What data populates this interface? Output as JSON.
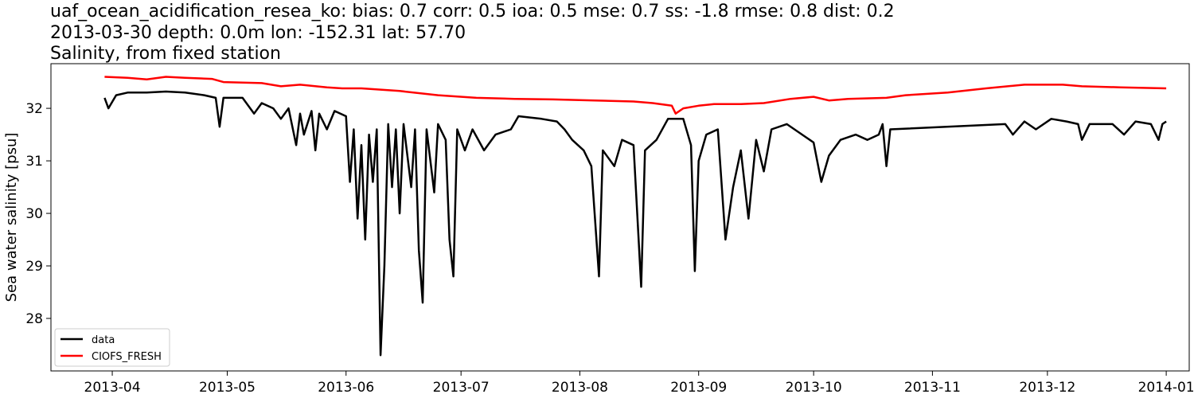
{
  "title_lines": [
    "uaf_ocean_acidification_resea_ko: bias: 0.7  corr: 0.5  ioa: 0.5  mse: 0.7  ss: -1.8  rmse: 0.8  dist: 0.2",
    "2013-03-30 depth: 0.0m lon: -152.31 lat: 57.70",
    "Salinity, from fixed station"
  ],
  "chart_data": {
    "type": "line",
    "title": "uaf_ocean_acidification_resea_ko: bias: 0.7  corr: 0.5  ioa: 0.5  mse: 0.7  ss: -1.8  rmse: 0.8  dist: 0.2 / 2013-03-30 depth: 0.0m lon: -152.31 lat: 57.70 / Salinity, from fixed station",
    "xlabel": "",
    "ylabel": "Sea water salinity [psu]",
    "x_type": "date",
    "xlim": [
      "2013-03-16",
      "2014-01-07"
    ],
    "ylim": [
      27.0,
      32.85
    ],
    "xticks": [
      "2013-04-01",
      "2013-05-01",
      "2013-06-01",
      "2013-07-01",
      "2013-08-01",
      "2013-09-01",
      "2013-10-01",
      "2013-11-01",
      "2013-12-01",
      "2014-01-01"
    ],
    "xtick_labels": [
      "2013-04",
      "2013-05",
      "2013-06",
      "2013-07",
      "2013-08",
      "2013-09",
      "2013-10",
      "2013-11",
      "2013-12",
      "2014-01"
    ],
    "yticks": [
      28,
      29,
      30,
      31,
      32
    ],
    "legend_position": "lower-left",
    "grid": false,
    "series": [
      {
        "name": "data",
        "color": "#000000",
        "points": [
          [
            "2013-03-30",
            32.2
          ],
          [
            "2013-03-31",
            32.0
          ],
          [
            "2013-04-02",
            32.25
          ],
          [
            "2013-04-05",
            32.3
          ],
          [
            "2013-04-10",
            32.3
          ],
          [
            "2013-04-15",
            32.32
          ],
          [
            "2013-04-20",
            32.3
          ],
          [
            "2013-04-25",
            32.25
          ],
          [
            "2013-04-28",
            32.2
          ],
          [
            "2013-04-29",
            31.65
          ],
          [
            "2013-04-30",
            32.2
          ],
          [
            "2013-05-05",
            32.2
          ],
          [
            "2013-05-08",
            31.9
          ],
          [
            "2013-05-10",
            32.1
          ],
          [
            "2013-05-13",
            32.0
          ],
          [
            "2013-05-15",
            31.8
          ],
          [
            "2013-05-17",
            32.0
          ],
          [
            "2013-05-19",
            31.3
          ],
          [
            "2013-05-20",
            31.9
          ],
          [
            "2013-05-21",
            31.5
          ],
          [
            "2013-05-23",
            31.95
          ],
          [
            "2013-05-24",
            31.2
          ],
          [
            "2013-05-25",
            31.9
          ],
          [
            "2013-05-27",
            31.6
          ],
          [
            "2013-05-29",
            31.95
          ],
          [
            "2013-06-01",
            31.85
          ],
          [
            "2013-06-02",
            30.6
          ],
          [
            "2013-06-03",
            31.6
          ],
          [
            "2013-06-04",
            29.9
          ],
          [
            "2013-06-05",
            31.3
          ],
          [
            "2013-06-06",
            29.5
          ],
          [
            "2013-06-07",
            31.5
          ],
          [
            "2013-06-08",
            30.6
          ],
          [
            "2013-06-09",
            31.6
          ],
          [
            "2013-06-10",
            27.3
          ],
          [
            "2013-06-11",
            29.0
          ],
          [
            "2013-06-12",
            31.7
          ],
          [
            "2013-06-13",
            30.5
          ],
          [
            "2013-06-14",
            31.6
          ],
          [
            "2013-06-15",
            30.0
          ],
          [
            "2013-06-16",
            31.7
          ],
          [
            "2013-06-18",
            30.5
          ],
          [
            "2013-06-19",
            31.6
          ],
          [
            "2013-06-20",
            29.3
          ],
          [
            "2013-06-21",
            28.3
          ],
          [
            "2013-06-22",
            31.6
          ],
          [
            "2013-06-24",
            30.4
          ],
          [
            "2013-06-25",
            31.7
          ],
          [
            "2013-06-27",
            31.4
          ],
          [
            "2013-06-28",
            29.5
          ],
          [
            "2013-06-29",
            28.8
          ],
          [
            "2013-06-30",
            31.6
          ],
          [
            "2013-07-02",
            31.2
          ],
          [
            "2013-07-04",
            31.6
          ],
          [
            "2013-07-07",
            31.2
          ],
          [
            "2013-07-10",
            31.5
          ],
          [
            "2013-07-14",
            31.6
          ],
          [
            "2013-07-16",
            31.85
          ],
          [
            "2013-07-22",
            31.8
          ],
          [
            "2013-07-26",
            31.75
          ],
          [
            "2013-07-28",
            31.6
          ],
          [
            "2013-07-30",
            31.4
          ],
          [
            "2013-08-02",
            31.2
          ],
          [
            "2013-08-04",
            30.9
          ],
          [
            "2013-08-06",
            28.8
          ],
          [
            "2013-08-07",
            31.2
          ],
          [
            "2013-08-10",
            30.9
          ],
          [
            "2013-08-12",
            31.4
          ],
          [
            "2013-08-15",
            31.3
          ],
          [
            "2013-08-17",
            28.6
          ],
          [
            "2013-08-18",
            31.2
          ],
          [
            "2013-08-21",
            31.4
          ],
          [
            "2013-08-24",
            31.8
          ],
          [
            "2013-08-28",
            31.8
          ],
          [
            "2013-08-30",
            31.3
          ],
          [
            "2013-08-31",
            28.9
          ],
          [
            "2013-09-01",
            31.0
          ],
          [
            "2013-09-03",
            31.5
          ],
          [
            "2013-09-06",
            31.6
          ],
          [
            "2013-09-08",
            29.5
          ],
          [
            "2013-09-10",
            30.5
          ],
          [
            "2013-09-12",
            31.2
          ],
          [
            "2013-09-14",
            29.9
          ],
          [
            "2013-09-16",
            31.4
          ],
          [
            "2013-09-18",
            30.8
          ],
          [
            "2013-09-20",
            31.6
          ],
          [
            "2013-09-24",
            31.7
          ],
          [
            "2013-09-28",
            31.5
          ],
          [
            "2013-10-01",
            31.35
          ],
          [
            "2013-10-03",
            30.6
          ],
          [
            "2013-10-05",
            31.1
          ],
          [
            "2013-10-08",
            31.4
          ],
          [
            "2013-10-12",
            31.5
          ],
          [
            "2013-10-15",
            31.4
          ],
          [
            "2013-10-18",
            31.5
          ],
          [
            "2013-10-19",
            31.7
          ],
          [
            "2013-10-20",
            30.9
          ],
          [
            "2013-10-21",
            31.6
          ],
          [
            "2013-11-20",
            31.7
          ],
          [
            "2013-11-22",
            31.5
          ],
          [
            "2013-11-25",
            31.75
          ],
          [
            "2013-11-28",
            31.6
          ],
          [
            "2013-12-02",
            31.8
          ],
          [
            "2013-12-06",
            31.75
          ],
          [
            "2013-12-09",
            31.7
          ],
          [
            "2013-12-10",
            31.4
          ],
          [
            "2013-12-12",
            31.7
          ],
          [
            "2013-12-18",
            31.7
          ],
          [
            "2013-12-21",
            31.5
          ],
          [
            "2013-12-24",
            31.75
          ],
          [
            "2013-12-28",
            31.7
          ],
          [
            "2013-12-30",
            31.4
          ],
          [
            "2013-12-31",
            31.7
          ],
          [
            "2014-01-01",
            31.75
          ]
        ]
      },
      {
        "name": "CIOFS_FRESH",
        "color": "#ff0000",
        "points": [
          [
            "2013-03-30",
            32.6
          ],
          [
            "2013-04-05",
            32.58
          ],
          [
            "2013-04-10",
            32.55
          ],
          [
            "2013-04-15",
            32.6
          ],
          [
            "2013-04-20",
            32.58
          ],
          [
            "2013-04-27",
            32.56
          ],
          [
            "2013-04-30",
            32.5
          ],
          [
            "2013-05-10",
            32.48
          ],
          [
            "2013-05-15",
            32.42
          ],
          [
            "2013-05-20",
            32.45
          ],
          [
            "2013-05-27",
            32.4
          ],
          [
            "2013-05-31",
            32.38
          ],
          [
            "2013-06-05",
            32.38
          ],
          [
            "2013-06-15",
            32.33
          ],
          [
            "2013-06-25",
            32.25
          ],
          [
            "2013-07-05",
            32.2
          ],
          [
            "2013-07-15",
            32.18
          ],
          [
            "2013-07-25",
            32.17
          ],
          [
            "2013-08-05",
            32.15
          ],
          [
            "2013-08-15",
            32.13
          ],
          [
            "2013-08-20",
            32.1
          ],
          [
            "2013-08-25",
            32.05
          ],
          [
            "2013-08-26",
            31.9
          ],
          [
            "2013-08-28",
            32.0
          ],
          [
            "2013-09-01",
            32.05
          ],
          [
            "2013-09-05",
            32.08
          ],
          [
            "2013-09-12",
            32.08
          ],
          [
            "2013-09-18",
            32.1
          ],
          [
            "2013-09-25",
            32.18
          ],
          [
            "2013-10-01",
            32.22
          ],
          [
            "2013-10-05",
            32.15
          ],
          [
            "2013-10-10",
            32.18
          ],
          [
            "2013-10-20",
            32.2
          ],
          [
            "2013-10-25",
            32.25
          ],
          [
            "2013-11-05",
            32.3
          ],
          [
            "2013-11-15",
            32.38
          ],
          [
            "2013-11-25",
            32.45
          ],
          [
            "2013-12-05",
            32.45
          ],
          [
            "2013-12-10",
            32.42
          ],
          [
            "2013-12-20",
            32.4
          ],
          [
            "2014-01-01",
            32.38
          ]
        ]
      }
    ]
  }
}
